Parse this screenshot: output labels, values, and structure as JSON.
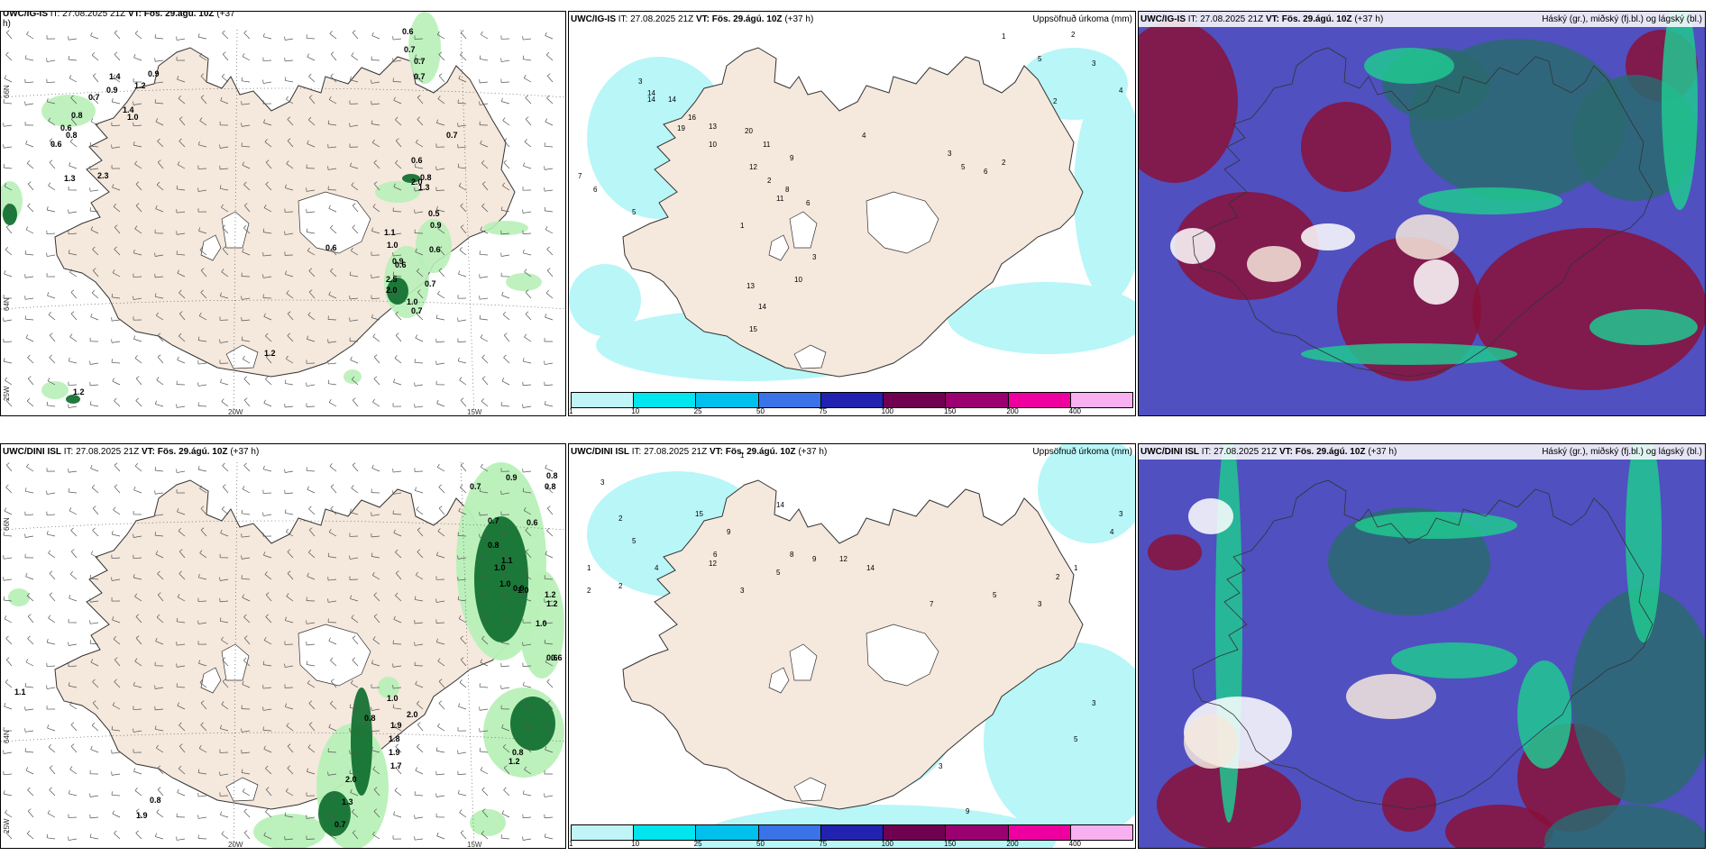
{
  "panels": {
    "p1": {
      "header_model": "UWC/IG-IS",
      "header_it": " IT: 27.08.2025 21Z ",
      "header_vt_label": "VT:",
      "header_vt": " Fös. 29.ágú. 10Z",
      "header_lead": " (+37",
      "header_lead2": "h)",
      "lon_labels": [
        "20W",
        "15W"
      ],
      "lat_labels": [
        "66N",
        "64N",
        "25W"
      ],
      "values": [
        "0.6",
        "0.7",
        "0.7",
        "0.7",
        "0.9",
        "1.4",
        "0.7",
        "1.2",
        "0.9",
        "1.4",
        "0.8",
        "1.0",
        "0.6",
        "0.8",
        "0.6",
        "1.3",
        "2.3",
        "0.7",
        "0.6",
        "0.8",
        "2.0",
        "1.3",
        "0.5",
        "0.9",
        "1.1",
        "1.0",
        "0.6",
        "0.6",
        "0.9",
        "0.6",
        "2.5",
        "2.0",
        "0.7",
        "1.0",
        "0.7",
        "1.2",
        "1.2"
      ]
    },
    "p2": {
      "header_model": "UWC/IG-IS",
      "header_it": " IT: 27.08.2025 21Z ",
      "header_vt_label": "VT:",
      "header_vt": " Fös. 29.ágú. 10Z",
      "header_lead": " (+37 h)",
      "header_right": "Uppsöfnuð úrkoma (mm)",
      "values": [
        "1",
        "2",
        "3",
        "4",
        "5",
        "2",
        "3",
        "14",
        "14",
        "14",
        "19",
        "16",
        "13",
        "10",
        "7",
        "6",
        "5",
        "20",
        "11",
        "9",
        "8",
        "12",
        "11",
        "4",
        "6",
        "3",
        "2",
        "1",
        "10",
        "13",
        "14",
        "15",
        "3",
        "5",
        "6",
        "2"
      ]
    },
    "p3": {
      "header_model": "UWC/IG-IS",
      "header_it": " IT: 27.08.2025 21Z ",
      "header_vt_label": "VT:",
      "header_vt": " Fös. 29.ágú. 10Z",
      "header_lead": " (+37 h)",
      "header_right": "Háský (gr.), miðský (fj.bl.) og lágský (bl.)"
    },
    "p4": {
      "header_model": "UWC/DINI ISL",
      "header_it": " IT: 27.08.2025 21Z ",
      "header_vt_label": "VT:",
      "header_vt": " Fös. 29.ágú. 10Z",
      "header_lead": " (+37 h)",
      "lon_labels": [
        "20W",
        "15W"
      ],
      "lat_labels": [
        "66N",
        "64N",
        "25W"
      ],
      "values": [
        "0.9",
        "0.8",
        "0.8",
        "0.7",
        "0.7",
        "0.6",
        "0.8",
        "1.0",
        "1.2",
        "1.1",
        "1.0",
        "1.0",
        "0.9",
        "1.2",
        "1.0",
        "0.6",
        "1.1",
        "0.6",
        "1.0",
        "2.0",
        "0.8",
        "1.9",
        "1.8",
        "1.9",
        "1.7",
        "2.0",
        "1.3",
        "0.7",
        "0.8",
        "1.9",
        "0.8",
        "1.2"
      ]
    },
    "p5": {
      "header_model": "UWC/DINI ISL",
      "header_it": " IT: 27.08.2025 21Z ",
      "header_vt_label": "VT:",
      "header_vt": " Fös. 29.ágú. 10Z",
      "header_lead": " (+37 h)",
      "header_right": "Uppsöfnuð úrkoma (mm)",
      "values": [
        "1",
        "3",
        "2",
        "5",
        "1",
        "2",
        "3",
        "4",
        "15",
        "14",
        "12",
        "9",
        "6",
        "4",
        "2",
        "3",
        "5",
        "8",
        "9",
        "12",
        "14",
        "7",
        "5",
        "3",
        "2",
        "1",
        "3",
        "9",
        "5",
        "3"
      ]
    },
    "p6": {
      "header_model": "UWC/DINI ISL",
      "header_it": " IT: 27.08.2025 21Z ",
      "header_vt_label": "VT:",
      "header_vt": " Fös. 29.ágú. 10Z",
      "header_lead": " (+37 h)",
      "header_right": "Háský (gr.), miðský (fj.bl.) og lágský (bl.)"
    }
  },
  "precip_legend": {
    "ticks": [
      "1",
      "10",
      "25",
      "50",
      "75",
      "100",
      "150",
      "200",
      "400"
    ],
    "colors": [
      "#bff5f7",
      "#00e5ee",
      "#00c0ee",
      "#3a73e8",
      "#2222b0",
      "#700050",
      "#9a0070",
      "#ee00a0",
      "#f8b0f0"
    ]
  },
  "colors": {
    "land": "#f5e8dc",
    "land_dark": "#e8d8c8",
    "water": "#ffffff",
    "precip_light": "#b8f6f8",
    "wind_green_light": "#b8f0b8",
    "wind_green": "#4cc86c",
    "wind_green_dark": "#0a6a2a",
    "cloud_high": "#20c890",
    "cloud_mid": "#5050c0",
    "cloud_low": "#8a1038",
    "cloud_teal": "#2a6a70"
  }
}
